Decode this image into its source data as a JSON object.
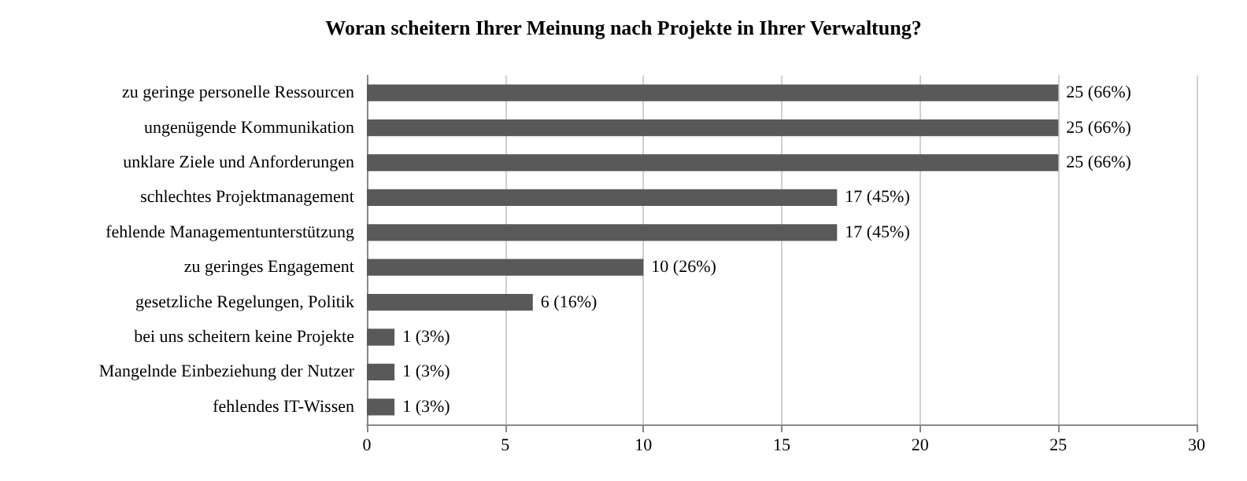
{
  "chart_data": {
    "type": "bar",
    "title": "Woran scheitern Ihrer Meinung nach Projekte in Ihrer Verwaltung?",
    "orientation": "horizontal",
    "categories": [
      "zu geringe personelle Ressourcen",
      "ungenügende Kommunikation",
      "unklare Ziele und Anforderungen",
      "schlechtes Projektmanagement",
      "fehlende Managementunterstützung",
      "zu geringes Engagement",
      "gesetzliche Regelungen, Politik",
      "bei uns scheitern keine Projekte",
      "Mangelnde Einbeziehung der Nutzer",
      "fehlendes IT-Wissen"
    ],
    "values": [
      25,
      25,
      25,
      17,
      17,
      10,
      6,
      1,
      1,
      1
    ],
    "value_labels": [
      "25 (66%)",
      "25 (66%)",
      "25 (66%)",
      "17 (45%)",
      "17 (45%)",
      "10 (26%)",
      "6 (16%)",
      "1 (3%)",
      "1 (3%)",
      "1 (3%)"
    ],
    "color": "#595959",
    "xlim": [
      0,
      30
    ],
    "xticks": [
      0,
      5,
      10,
      15,
      20,
      25,
      30
    ],
    "grid": "x"
  }
}
